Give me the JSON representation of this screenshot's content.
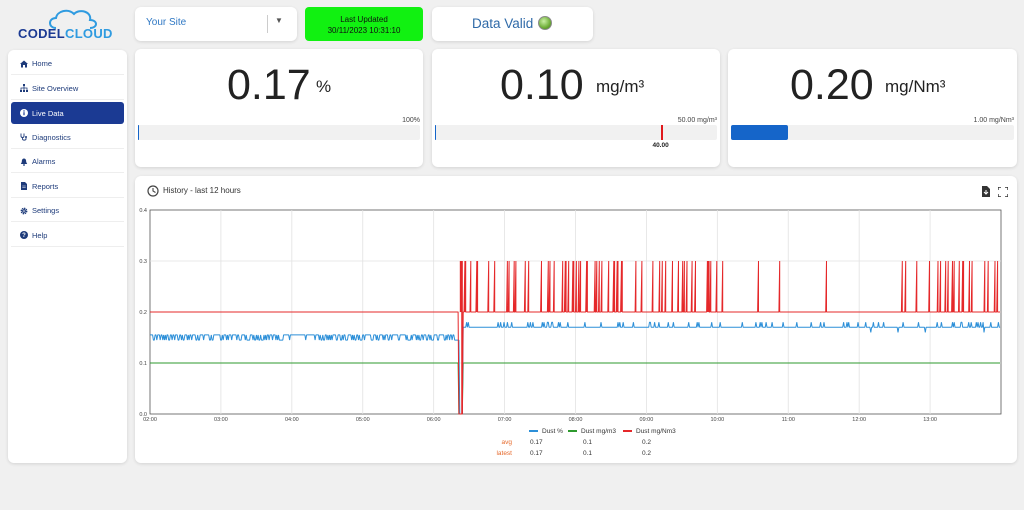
{
  "logo": {
    "part1": "CODEL",
    "part2": "CLOUD"
  },
  "header": {
    "site_select": "Your Site",
    "last_updated_label": "Last Updated",
    "last_updated_value": "30/11/2023 10:31:10",
    "status_text": "Data Valid",
    "status_color": "#6fae38"
  },
  "sidebar": {
    "items": [
      {
        "label": "Home",
        "icon": "home-icon"
      },
      {
        "label": "Site Overview",
        "icon": "sitemap-icon"
      },
      {
        "label": "Live Data",
        "icon": "info-icon",
        "active": true
      },
      {
        "label": "Diagnostics",
        "icon": "stethoscope-icon"
      },
      {
        "label": "Alarms",
        "icon": "bell-icon"
      },
      {
        "label": "Reports",
        "icon": "file-icon"
      },
      {
        "label": "Settings",
        "icon": "gear-icon"
      },
      {
        "label": "Help",
        "icon": "question-icon"
      }
    ]
  },
  "metrics": [
    {
      "value": "0.17",
      "unit": "%",
      "max_label": "100%",
      "fill_fraction": 0.0017,
      "marker_label": null
    },
    {
      "value": "0.10",
      "unit": "mg/m³",
      "max_label": "50.00 mg/m³",
      "fill_fraction": 0.002,
      "marker_label": "40.00",
      "marker_fraction": 0.8
    },
    {
      "value": "0.20",
      "unit": "mg/Nm³",
      "max_label": "1.00 mg/Nm³",
      "fill_fraction": 0.2,
      "marker_label": null
    }
  ],
  "history": {
    "title": "History - last 12 hours",
    "icons": [
      "download-icon",
      "fullscreen-icon",
      "clock-icon"
    ]
  },
  "chart_data": {
    "type": "line",
    "xlabel": "",
    "ylabel": "",
    "ylim": [
      0,
      0.4
    ],
    "yticks": [
      "0.0",
      "0.1",
      "0.2",
      "0.3",
      "0.4"
    ],
    "xticks": [
      "02:00",
      "03:00",
      "04:00",
      "05:00",
      "06:00",
      "07:00",
      "08:00",
      "09:00",
      "10:00",
      "11:00",
      "12:00",
      "13:00"
    ],
    "xrange_hours": [
      2.0,
      14.0
    ],
    "grid": true,
    "series": [
      {
        "name": "Dust %",
        "color": "#2c8fd8",
        "base_before": 0.155,
        "base_after": 0.17,
        "avg": "0.17",
        "latest": "0.17"
      },
      {
        "name": "Dust mg/m3",
        "color": "#2e9a2e",
        "base_before": 0.1,
        "base_after": 0.1,
        "avg": "0.1",
        "latest": "0.1"
      },
      {
        "name": "Dust mg/Nm3",
        "color": "#e5282a",
        "base_before": 0.2,
        "base_after": 0.2,
        "avg": "0.2",
        "latest": "0.2"
      }
    ],
    "dip_time_hours": 6.38,
    "stats_rows": [
      "avg",
      "latest"
    ]
  }
}
